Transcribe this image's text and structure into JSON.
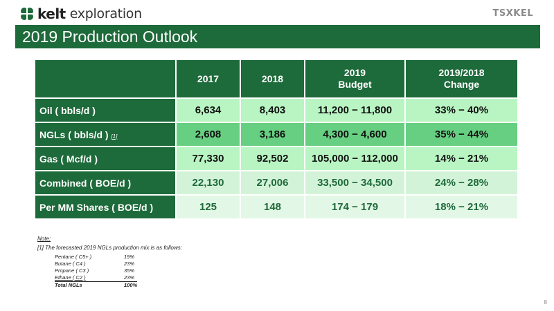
{
  "brand": {
    "kelt": "kelt",
    "exploration": "exploration",
    "partner": "TSXKEL",
    "logo_color": "#1d6a3a"
  },
  "title": "2019 Production Outlook",
  "table": {
    "headers": [
      "",
      "2017",
      "2018",
      "2019 Budget",
      "2019/2018 Change"
    ],
    "header_lines": {
      "budget_1": "2019",
      "budget_2": "Budget",
      "change_1": "2019/2018",
      "change_2": "Change"
    },
    "rows": [
      {
        "label": "Oil ( bbls/d )",
        "footnote": "",
        "values": [
          "6,634",
          "8,403",
          "11,200 − 11,800",
          "33% − 40%"
        ]
      },
      {
        "label": "NGLs ( bbls/d )",
        "footnote": "[1]",
        "values": [
          "2,608",
          "3,186",
          "4,300 − 4,600",
          "35% − 44%"
        ]
      },
      {
        "label": "Gas ( Mcf/d )",
        "footnote": "",
        "values": [
          "77,330",
          "92,502",
          "105,000 − 112,000",
          "14% − 21%"
        ]
      },
      {
        "label": "Combined ( BOE/d )",
        "footnote": "",
        "values": [
          "22,130",
          "27,006",
          "33,500 − 34,500",
          "24% − 28%"
        ]
      },
      {
        "label": "Per MM Shares ( BOE/d )",
        "footnote": "",
        "values": [
          "125",
          "148",
          "174 − 179",
          "18% − 21%"
        ]
      }
    ]
  },
  "note": {
    "heading": "Note:",
    "text": "[1] The forecasted 2019 NGLs production mix is as follows:",
    "mix": [
      {
        "name": "Pentane ( C5+ )",
        "value": "19%"
      },
      {
        "name": "Butane ( C4 )",
        "value": "23%"
      },
      {
        "name": "Propane ( C3 )",
        "value": "35%"
      },
      {
        "name": "Ethane ( C2 )",
        "value": "23%"
      }
    ],
    "total_label": "Total NGLs",
    "total_value": "100%"
  },
  "page_number": "8",
  "colors": {
    "dark_green": "#1d6a3a",
    "light_green": "#b8f5c2",
    "mid_green": "#66cf82"
  }
}
